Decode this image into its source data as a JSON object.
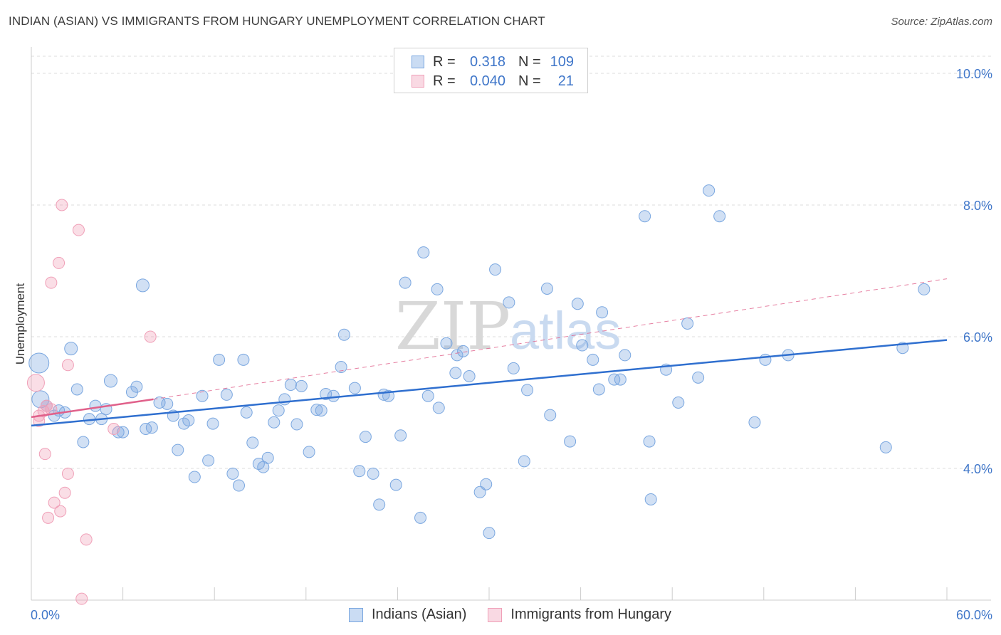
{
  "title": "INDIAN (ASIAN) VS IMMIGRANTS FROM HUNGARY UNEMPLOYMENT CORRELATION CHART",
  "source": "Source: ZipAtlas.com",
  "watermark": {
    "zip": "ZIP",
    "atlas": "atlas"
  },
  "legend": {
    "rows": [
      {
        "r_label": "R =",
        "r_value": "0.318",
        "n_label": "N =",
        "n_value": "109",
        "color": "#7aa7e0"
      },
      {
        "r_label": "R =",
        "r_value": "0.040",
        "n_label": "N =",
        "n_value": "21",
        "color": "#f0a0b8"
      }
    ]
  },
  "bottom_legend": [
    {
      "label": "Indians (Asian)",
      "color": "#7aa7e0"
    },
    {
      "label": "Immigrants from Hungary",
      "color": "#f0a0b8"
    }
  ],
  "colors": {
    "blue_fill": "rgba(122,167,224,0.35)",
    "blue_stroke": "#7aa7e0",
    "blue_line": "#2f6fcf",
    "pink_fill": "rgba(240,160,184,0.35)",
    "pink_stroke": "#f0a0b8",
    "pink_line": "#e0608a",
    "axis_text": "#3f76c9",
    "grid": "#dcdcdc"
  },
  "chart_data": {
    "type": "scatter",
    "title": "INDIAN (ASIAN) VS IMMIGRANTS FROM HUNGARY UNEMPLOYMENT CORRELATION CHART",
    "xlabel": "",
    "ylabel": "Unemployment",
    "xlim": [
      0,
      60
    ],
    "ylim": [
      2.0,
      10.4
    ],
    "x_tick_labels": [
      "0.0%",
      "60.0%"
    ],
    "y_ticks": [
      4.0,
      6.0,
      8.0,
      10.0
    ],
    "y_tick_labels": [
      "4.0%",
      "6.0%",
      "8.0%",
      "10.0%"
    ],
    "series": [
      {
        "name": "Indians (Asian)",
        "r": 0.318,
        "n": 109,
        "trend": {
          "x": [
            0,
            60
          ],
          "y": [
            4.65,
            5.95
          ]
        },
        "points": [
          [
            0.5,
            5.6,
            14
          ],
          [
            0.6,
            5.05,
            12
          ],
          [
            1.0,
            4.95,
            8
          ],
          [
            1.5,
            4.8,
            8
          ],
          [
            1.8,
            4.88,
            8
          ],
          [
            2.2,
            4.85,
            8
          ],
          [
            2.6,
            5.82,
            9
          ],
          [
            3.0,
            5.2,
            8
          ],
          [
            3.4,
            4.4,
            8
          ],
          [
            3.8,
            4.75,
            8
          ],
          [
            4.2,
            4.95,
            8
          ],
          [
            4.6,
            4.75,
            8
          ],
          [
            4.9,
            4.9,
            8
          ],
          [
            5.2,
            5.33,
            9
          ],
          [
            5.7,
            4.55,
            8
          ],
          [
            6.0,
            4.55,
            8
          ],
          [
            6.6,
            5.16,
            8
          ],
          [
            6.9,
            5.24,
            8
          ],
          [
            7.3,
            6.78,
            9
          ],
          [
            7.5,
            4.6,
            8
          ],
          [
            7.9,
            4.62,
            8
          ],
          [
            8.4,
            5.0,
            8
          ],
          [
            8.9,
            4.98,
            8
          ],
          [
            9.3,
            4.8,
            8
          ],
          [
            9.6,
            4.28,
            8
          ],
          [
            10.0,
            4.68,
            8
          ],
          [
            10.3,
            4.73,
            8
          ],
          [
            10.7,
            3.87,
            8
          ],
          [
            11.2,
            5.1,
            8
          ],
          [
            11.6,
            4.12,
            8
          ],
          [
            11.9,
            4.68,
            8
          ],
          [
            12.3,
            5.65,
            8
          ],
          [
            12.8,
            5.12,
            8
          ],
          [
            13.2,
            3.92,
            8
          ],
          [
            13.6,
            3.74,
            8
          ],
          [
            13.9,
            5.65,
            8
          ],
          [
            14.1,
            4.85,
            8
          ],
          [
            14.5,
            4.39,
            8
          ],
          [
            14.9,
            4.07,
            8
          ],
          [
            15.2,
            4.02,
            8
          ],
          [
            15.5,
            4.16,
            8
          ],
          [
            15.9,
            4.7,
            8
          ],
          [
            16.2,
            4.88,
            8
          ],
          [
            16.6,
            5.05,
            8
          ],
          [
            17.0,
            5.27,
            8
          ],
          [
            17.4,
            4.67,
            8
          ],
          [
            17.7,
            5.25,
            8
          ],
          [
            18.2,
            4.25,
            8
          ],
          [
            18.7,
            4.89,
            8
          ],
          [
            19.0,
            4.88,
            8
          ],
          [
            19.3,
            5.13,
            8
          ],
          [
            19.8,
            5.1,
            8
          ],
          [
            20.3,
            5.54,
            8
          ],
          [
            20.5,
            6.03,
            8
          ],
          [
            21.2,
            5.22,
            8
          ],
          [
            21.5,
            3.96,
            8
          ],
          [
            21.9,
            4.48,
            8
          ],
          [
            22.4,
            3.92,
            8
          ],
          [
            22.8,
            3.45,
            8
          ],
          [
            23.1,
            5.12,
            8
          ],
          [
            23.4,
            5.1,
            8
          ],
          [
            23.9,
            3.75,
            8
          ],
          [
            24.2,
            4.5,
            8
          ],
          [
            24.5,
            6.82,
            8
          ],
          [
            25.5,
            3.25,
            8
          ],
          [
            25.7,
            7.28,
            8
          ],
          [
            26.0,
            5.1,
            8
          ],
          [
            26.6,
            6.72,
            8
          ],
          [
            26.7,
            4.92,
            8
          ],
          [
            27.2,
            5.9,
            8
          ],
          [
            27.8,
            5.45,
            8
          ],
          [
            27.9,
            5.72,
            8
          ],
          [
            28.3,
            5.78,
            8
          ],
          [
            28.7,
            5.4,
            8
          ],
          [
            29.4,
            3.64,
            8
          ],
          [
            29.8,
            3.76,
            8
          ],
          [
            30.0,
            3.02,
            8
          ],
          [
            30.4,
            7.02,
            8
          ],
          [
            31.3,
            6.52,
            8
          ],
          [
            31.6,
            5.52,
            8
          ],
          [
            32.3,
            4.11,
            8
          ],
          [
            32.5,
            5.19,
            8
          ],
          [
            33.8,
            6.73,
            8
          ],
          [
            34.0,
            4.81,
            8
          ],
          [
            35.3,
            4.41,
            8
          ],
          [
            35.8,
            6.5,
            8
          ],
          [
            36.1,
            5.87,
            8
          ],
          [
            36.8,
            5.65,
            8
          ],
          [
            37.2,
            5.2,
            8
          ],
          [
            37.4,
            6.37,
            8
          ],
          [
            38.2,
            5.35,
            8
          ],
          [
            38.6,
            5.35,
            8
          ],
          [
            38.9,
            5.72,
            8
          ],
          [
            40.2,
            7.83,
            8
          ],
          [
            40.5,
            4.41,
            8
          ],
          [
            40.6,
            3.53,
            8
          ],
          [
            41.6,
            5.5,
            8
          ],
          [
            42.4,
            5.0,
            8
          ],
          [
            43.0,
            6.2,
            8
          ],
          [
            43.7,
            5.38,
            8
          ],
          [
            44.4,
            8.22,
            8
          ],
          [
            45.1,
            7.83,
            8
          ],
          [
            47.4,
            4.7,
            8
          ],
          [
            48.1,
            5.65,
            8
          ],
          [
            49.6,
            5.72,
            8
          ],
          [
            56.0,
            4.32,
            8
          ],
          [
            57.1,
            5.83,
            8
          ],
          [
            58.5,
            6.72,
            8
          ]
        ]
      },
      {
        "name": "Immigrants from Hungary",
        "r": 0.04,
        "n": 21,
        "trend": {
          "x": [
            0,
            8
          ],
          "y": [
            4.78,
            5.05
          ]
        },
        "trend_dashed": {
          "x": [
            8,
            60
          ],
          "y": [
            5.05,
            6.88
          ]
        },
        "points": [
          [
            0.3,
            5.3,
            12
          ],
          [
            0.5,
            4.8,
            8
          ],
          [
            0.5,
            4.72,
            8
          ],
          [
            0.8,
            4.87,
            8
          ],
          [
            0.9,
            4.22,
            8
          ],
          [
            1.0,
            4.95,
            8
          ],
          [
            1.1,
            3.25,
            8
          ],
          [
            1.3,
            6.82,
            8
          ],
          [
            1.3,
            4.9,
            8
          ],
          [
            1.5,
            3.48,
            8
          ],
          [
            1.8,
            7.12,
            8
          ],
          [
            1.9,
            3.35,
            8
          ],
          [
            2.0,
            8.0,
            8
          ],
          [
            2.2,
            3.63,
            8
          ],
          [
            2.4,
            3.92,
            8
          ],
          [
            2.4,
            5.57,
            8
          ],
          [
            3.1,
            7.62,
            8
          ],
          [
            3.6,
            2.92,
            8
          ],
          [
            3.3,
            2.02,
            8
          ],
          [
            5.4,
            4.6,
            8
          ],
          [
            7.8,
            6.0,
            8
          ]
        ]
      }
    ]
  }
}
